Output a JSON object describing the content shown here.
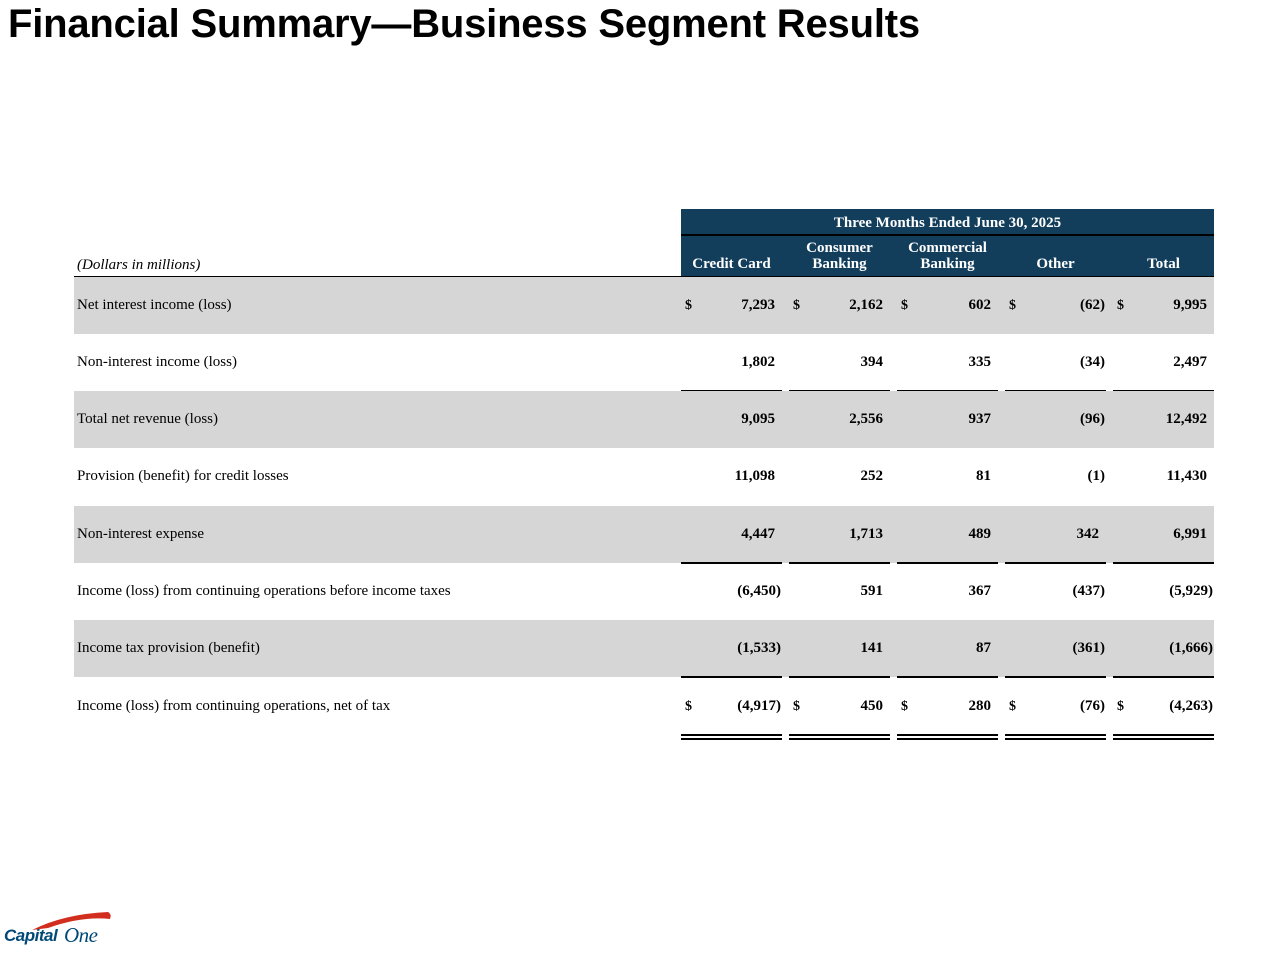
{
  "title": "Financial Summary—Business Segment Results",
  "table": {
    "period_header": "Three Months Ended June 30, 2025",
    "units_label": "(Dollars in millions)",
    "columns": [
      {
        "line1": "",
        "line2": "Credit Card"
      },
      {
        "line1": "Consumer",
        "line2": "Banking"
      },
      {
        "line1": "Commercial",
        "line2": "Banking"
      },
      {
        "line1": "",
        "line2": "Other"
      },
      {
        "line1": "",
        "line2": "Total"
      }
    ],
    "dollar_sign": "$",
    "rows": [
      {
        "label": "Net interest income (loss)",
        "values": [
          "7,293",
          "2,162",
          "602",
          "(62)",
          "9,995"
        ],
        "dollars": true,
        "shaded": true
      },
      {
        "label": "Non-interest income (loss)",
        "values": [
          "1,802",
          "394",
          "335",
          "(34)",
          "2,497"
        ],
        "dollars": false,
        "shaded": false
      },
      {
        "label": "Total net revenue (loss)",
        "values": [
          "9,095",
          "2,556",
          "937",
          "(96)",
          "12,492"
        ],
        "dollars": false,
        "shaded": true
      },
      {
        "label": "Provision (benefit) for credit losses",
        "values": [
          "11,098",
          "252",
          "81",
          "(1)",
          "11,430"
        ],
        "dollars": false,
        "shaded": false
      },
      {
        "label": "Non-interest expense",
        "values": [
          "4,447",
          "1,713",
          "489",
          "342",
          "6,991"
        ],
        "dollars": false,
        "shaded": true
      },
      {
        "label": "Income (loss) from continuing operations before income taxes",
        "values": [
          "(6,450)",
          "591",
          "367",
          "(437)",
          "(5,929)"
        ],
        "dollars": false,
        "shaded": false
      },
      {
        "label": "Income tax provision (benefit)",
        "values": [
          "(1,533)",
          "141",
          "87",
          "(361)",
          "(1,666)"
        ],
        "dollars": false,
        "shaded": true
      },
      {
        "label": "Income (loss) from continuing operations, net of tax",
        "values": [
          "(4,917)",
          "450",
          "280",
          "(76)",
          "(4,263)"
        ],
        "dollars": true,
        "shaded": false
      }
    ]
  },
  "logo": {
    "text": "CapitalOne",
    "accent_color": "#d22e1e",
    "text_color": "#004977"
  },
  "colors": {
    "header_bg": "#123e5c",
    "row_shade": "#d6d6d6"
  }
}
